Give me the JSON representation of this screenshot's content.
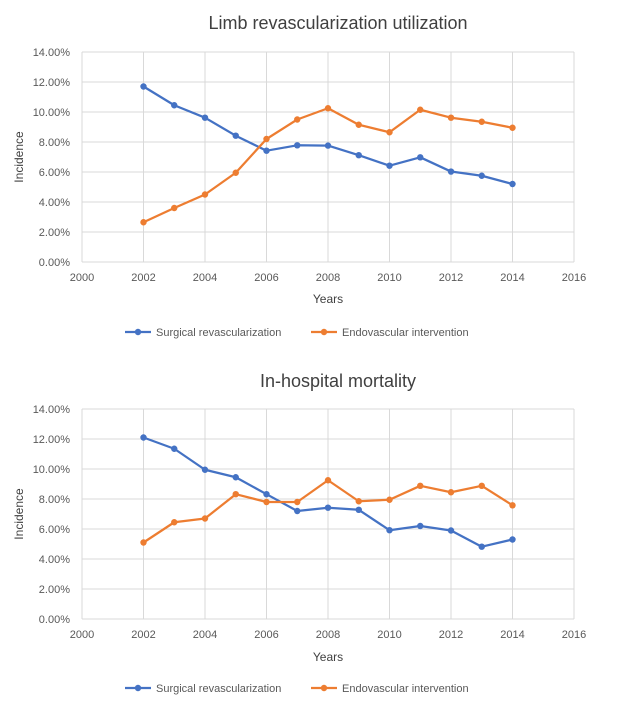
{
  "chart_data": [
    {
      "type": "line",
      "title": "Limb revascularization utilization",
      "xlabel": "Years",
      "ylabel": "Incidence",
      "xlim": [
        2000,
        2016
      ],
      "xticks": [
        "2000",
        "2002",
        "2004",
        "2006",
        "2008",
        "2010",
        "2012",
        "2014",
        "2016"
      ],
      "ylim": [
        0,
        14
      ],
      "yticks": [
        "0.00%",
        "2.00%",
        "4.00%",
        "6.00%",
        "8.00%",
        "10.00%",
        "12.00%",
        "14.00%"
      ],
      "grid": true,
      "legend_position": "bottom",
      "x": [
        2002,
        2003,
        2004,
        2005,
        2006,
        2007,
        2008,
        2009,
        2010,
        2011,
        2012,
        2013,
        2014
      ],
      "series": [
        {
          "name": "Surgical revascularization",
          "color": "#4472C4",
          "values": [
            11.7,
            10.45,
            9.62,
            8.42,
            7.42,
            7.78,
            7.76,
            7.12,
            6.42,
            6.98,
            6.03,
            5.75,
            5.2
          ]
        },
        {
          "name": "Endovascular intervention",
          "color": "#ED7D31",
          "values": [
            2.65,
            3.6,
            4.5,
            5.95,
            8.2,
            9.5,
            10.25,
            9.15,
            8.65,
            10.15,
            9.62,
            9.35,
            8.95
          ]
        }
      ]
    },
    {
      "type": "line",
      "title": "In-hospital mortality",
      "xlabel": "Years",
      "ylabel": "Incidence",
      "xlim": [
        2000,
        2016
      ],
      "xticks": [
        "2000",
        "2002",
        "2004",
        "2006",
        "2008",
        "2010",
        "2012",
        "2014",
        "2016"
      ],
      "ylim": [
        0,
        14
      ],
      "yticks": [
        "0.00%",
        "2.00%",
        "4.00%",
        "6.00%",
        "8.00%",
        "10.00%",
        "12.00%",
        "14.00%"
      ],
      "grid": true,
      "legend_position": "bottom",
      "x": [
        2002,
        2003,
        2004,
        2005,
        2006,
        2007,
        2008,
        2009,
        2010,
        2011,
        2012,
        2013,
        2014
      ],
      "series": [
        {
          "name": "Surgical revascularization",
          "color": "#4472C4",
          "values": [
            12.1,
            11.35,
            9.95,
            9.45,
            8.32,
            7.2,
            7.42,
            7.28,
            5.92,
            6.2,
            5.9,
            4.82,
            5.3
          ]
        },
        {
          "name": "Endovascular intervention",
          "color": "#ED7D31",
          "values": [
            5.1,
            6.45,
            6.7,
            8.32,
            7.8,
            7.8,
            9.25,
            7.85,
            7.95,
            8.88,
            8.45,
            8.88,
            7.58
          ]
        }
      ]
    }
  ]
}
